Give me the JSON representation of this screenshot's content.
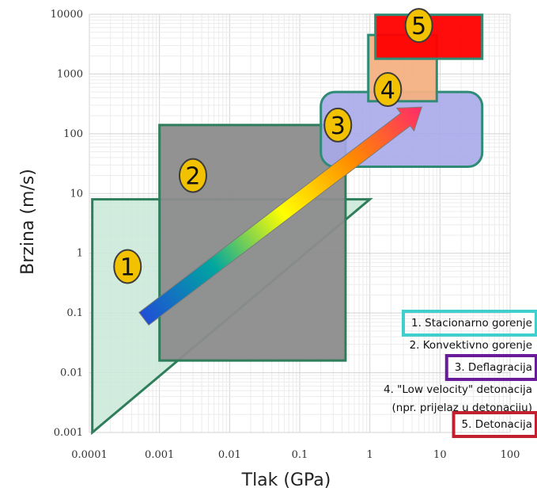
{
  "chart_data": {
    "type": "area",
    "xlabel": "Tlak (GPa)",
    "ylabel": "Brzina (m/s)",
    "xscale": "log",
    "yscale": "log",
    "xlim": [
      0.0001,
      100
    ],
    "ylim": [
      0.001,
      10000
    ],
    "grid": true,
    "x_ticks": [
      {
        "value": 0.0001,
        "label": "0.0001"
      },
      {
        "value": 0.001,
        "label": "0.001"
      },
      {
        "value": 0.01,
        "label": "0.01"
      },
      {
        "value": 0.1,
        "label": "0.1"
      },
      {
        "value": 1,
        "label": "1"
      },
      {
        "value": 10,
        "label": "10"
      },
      {
        "value": 100,
        "label": "100"
      }
    ],
    "y_ticks": [
      {
        "value": 0.001,
        "label": "0.001"
      },
      {
        "value": 0.01,
        "label": "0.01"
      },
      {
        "value": 0.1,
        "label": "0.1"
      },
      {
        "value": 1,
        "label": "1"
      },
      {
        "value": 10,
        "label": "10"
      },
      {
        "value": 100,
        "label": "100"
      },
      {
        "value": 1000,
        "label": "1000"
      },
      {
        "value": 10000,
        "label": "10000"
      }
    ],
    "regions": [
      {
        "label": "1",
        "shape": "triangle",
        "points": [
          [
            0.00011,
            8
          ],
          [
            1.0,
            8
          ],
          [
            0.00011,
            0.001
          ]
        ],
        "fill": "#c9e9d8",
        "stroke": "#2e7d5b",
        "badge": [
          0.00035,
          0.6
        ]
      },
      {
        "label": "2",
        "shape": "rect",
        "x": [
          0.001,
          0.45
        ],
        "y": [
          0.016,
          140
        ],
        "fill": "#8c8c8c",
        "stroke": "#2e7d5b",
        "badge": [
          0.003,
          20
        ]
      },
      {
        "label": "3",
        "shape": "rounded-rect",
        "x": [
          0.2,
          40
        ],
        "y": [
          28,
          500
        ],
        "fill": "#a8a8ea",
        "stroke": "#2e8b75",
        "badge": [
          0.35,
          140
        ]
      },
      {
        "label": "4",
        "shape": "rect",
        "x": [
          0.95,
          9
        ],
        "y": [
          350,
          4500
        ],
        "fill": "#f4b183",
        "stroke": "#2e8b75",
        "badge": [
          1.8,
          550
        ]
      },
      {
        "label": "5",
        "shape": "rect",
        "x": [
          1.2,
          40
        ],
        "y": [
          1800,
          9800
        ],
        "fill": "#ff0000",
        "stroke": "#2e8b75",
        "badge": [
          5,
          6500
        ]
      }
    ],
    "arrow": {
      "from": [
        0.0006,
        0.08
      ],
      "to": [
        5.5,
        280
      ],
      "gradient": [
        "#1f4fd6",
        "#00a6a0",
        "#ffff00",
        "#ff8a00",
        "#ff2a6a"
      ]
    },
    "legend": [
      {
        "text": "1. Stacionarno gorenje",
        "box_color": "#40cfcf"
      },
      {
        "text": "2. Konvektivno gorenje",
        "box_color": ""
      },
      {
        "text": "3. Deflagracija",
        "box_color": "#6a1b9a"
      },
      {
        "text": "4. \"Low velocity\" detonacija",
        "box_color": ""
      },
      {
        "text": "(npr. prijelaz u detonaciju)",
        "box_color": ""
      },
      {
        "text": "5. Detonacija",
        "box_color": "#c21f2f"
      }
    ]
  }
}
